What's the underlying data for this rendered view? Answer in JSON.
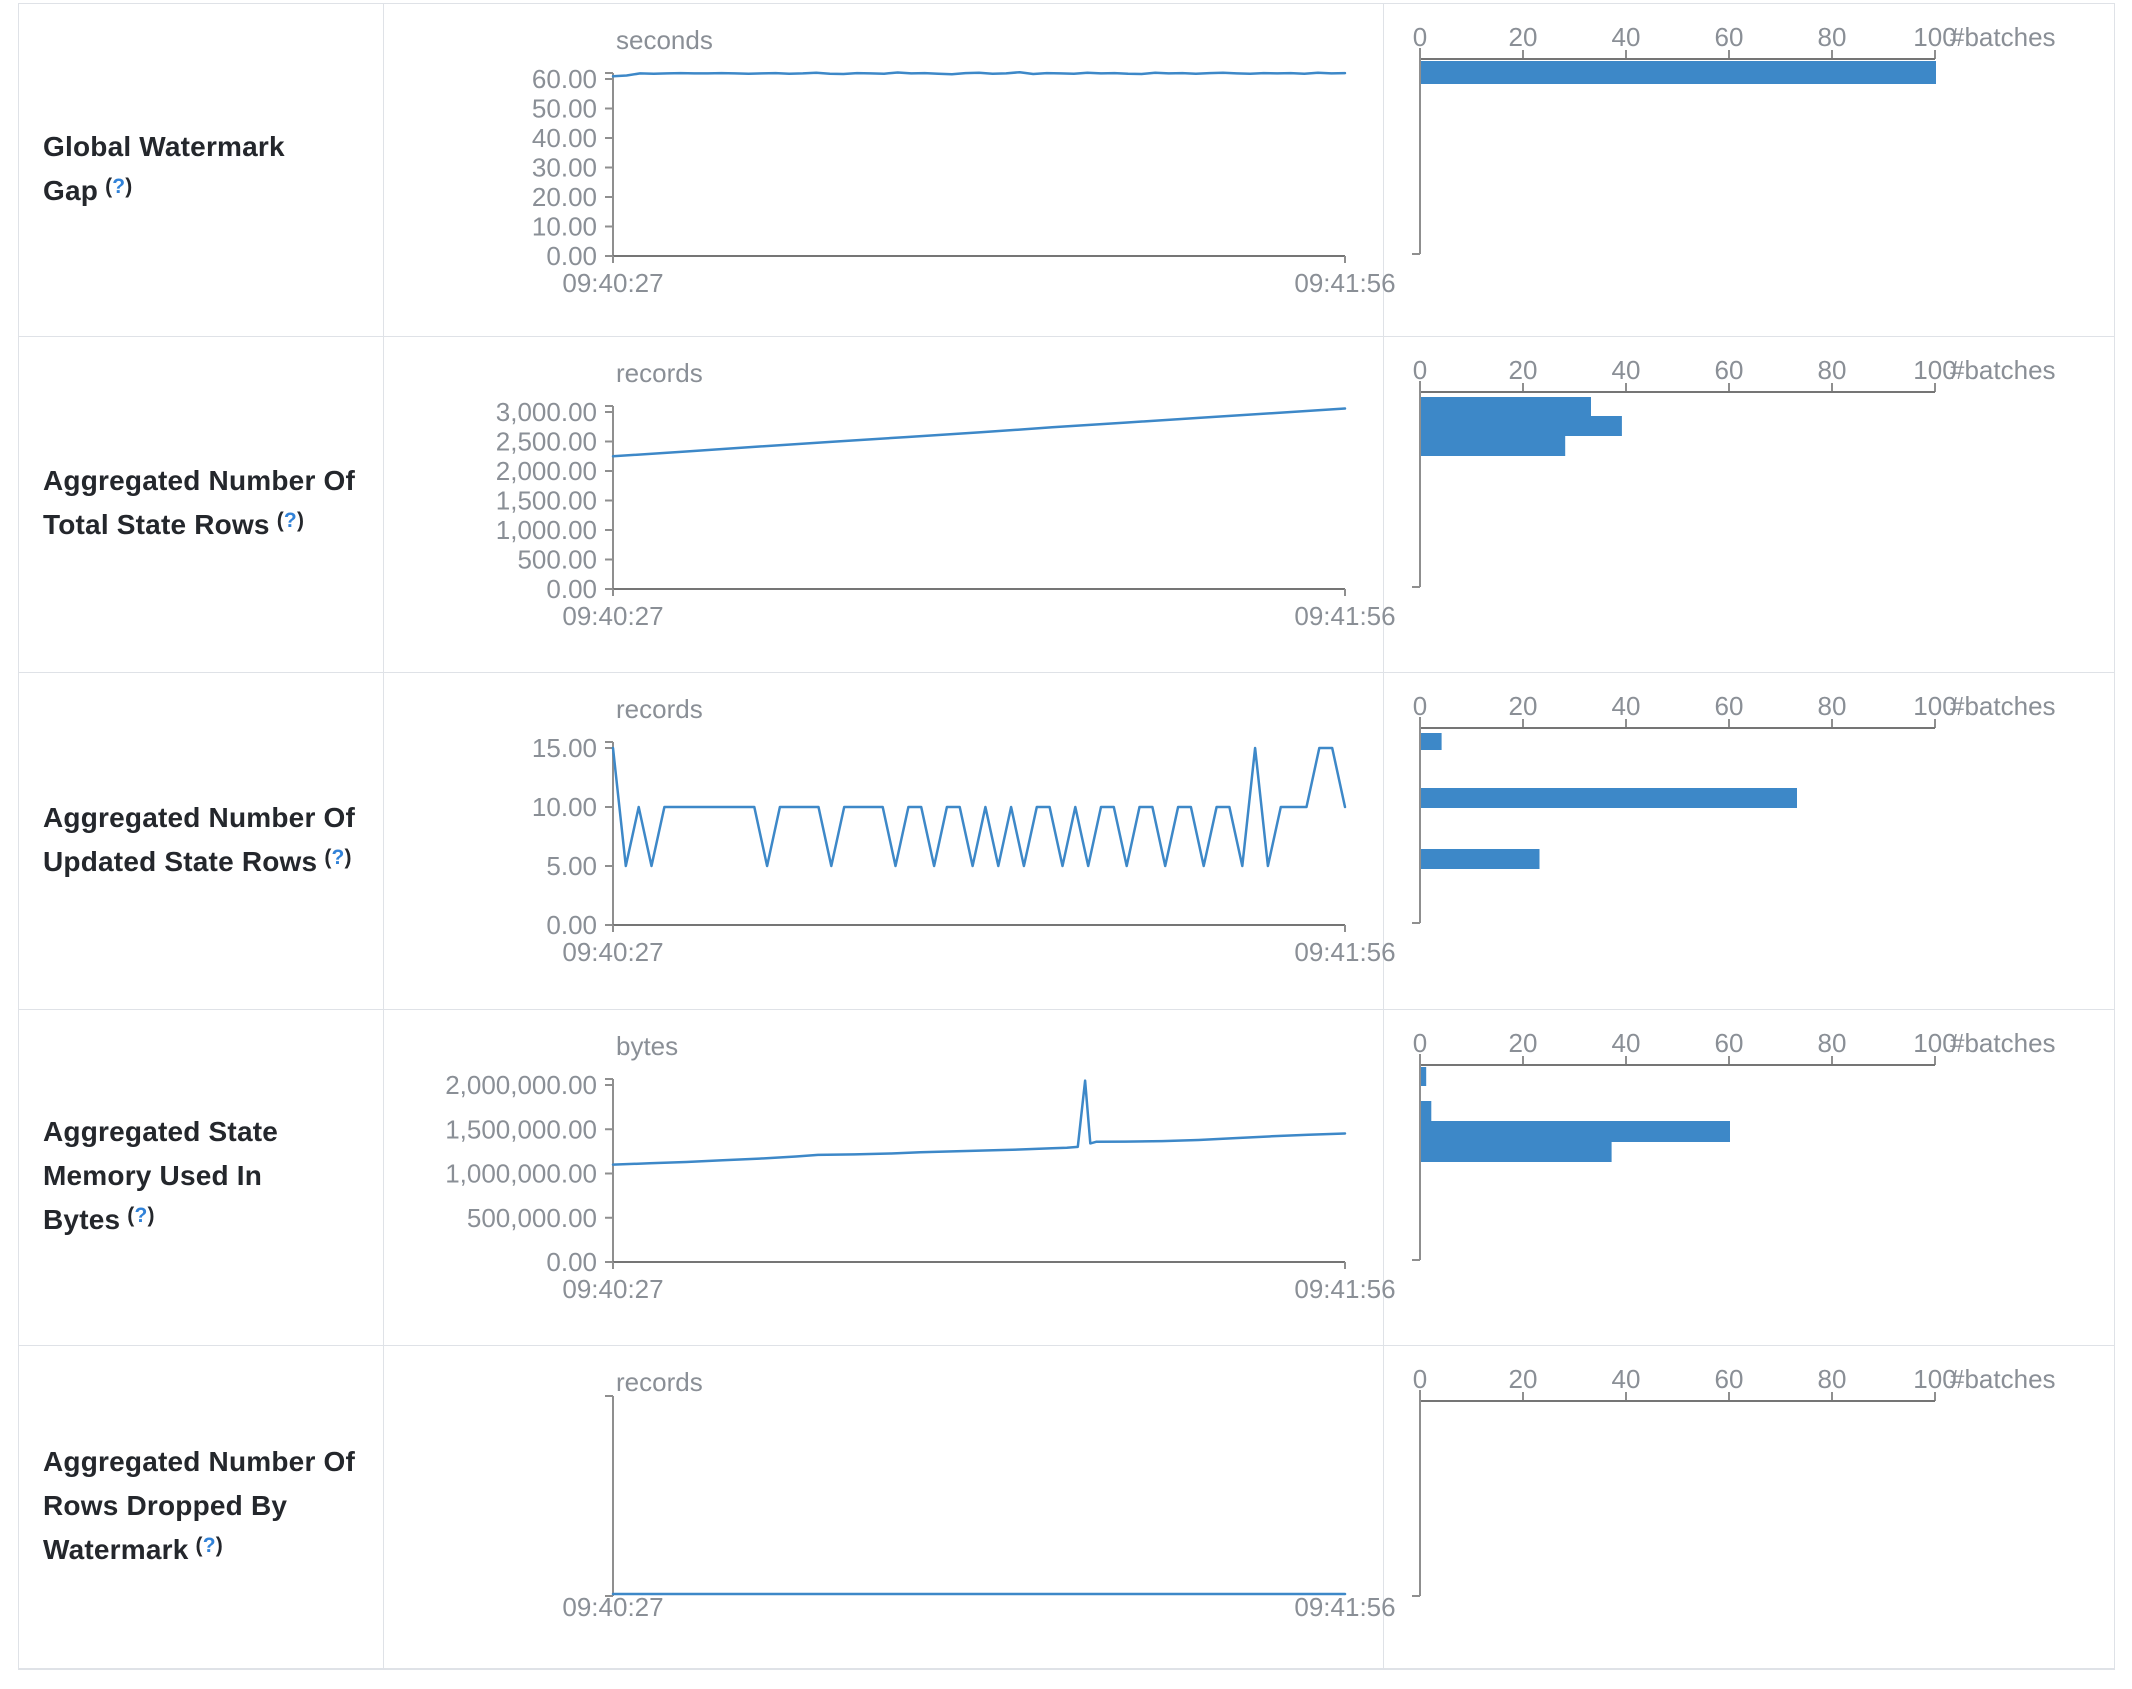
{
  "help": {
    "open": "(",
    "mark": "?",
    "close": ")"
  },
  "time_axis": {
    "start": "09:40:27",
    "end": "09:41:56"
  },
  "histogram_axis": {
    "ticks": [
      "0",
      "20",
      "40",
      "60",
      "80",
      "100"
    ],
    "label": "#batches",
    "max": 100
  },
  "rows": [
    {
      "label": "Global Watermark Gap",
      "unit": "seconds",
      "timeline": {
        "type": "line",
        "ymax": 60,
        "yticks": [
          "60.00",
          "50.00",
          "40.00",
          "30.00",
          "20.00",
          "10.00",
          "0.00"
        ],
        "values": [
          60.9,
          61.2,
          61.9,
          61.8,
          61.9,
          62.0,
          61.9,
          61.9,
          62.0,
          61.9,
          61.8,
          61.9,
          62.0,
          61.8,
          61.9,
          62.1,
          61.8,
          61.7,
          62.0,
          61.9,
          61.8,
          62.2,
          61.9,
          62.0,
          61.8,
          61.6,
          62.0,
          62.1,
          61.8,
          61.9,
          62.3,
          61.7,
          62.0,
          61.9,
          61.8,
          62.1,
          61.9,
          62.0,
          61.8,
          61.7,
          62.1,
          61.9,
          62.0,
          61.8,
          62.0,
          62.1,
          61.9,
          61.8,
          62.0,
          61.9,
          62.0,
          61.8,
          62.1,
          61.9,
          62.0
        ]
      },
      "histogram": {
        "type": "bar",
        "bars": [
          {
            "value": 100,
            "top": 57,
            "height": 23
          }
        ]
      }
    },
    {
      "label": "Aggregated Number Of Total State Rows",
      "unit": "records",
      "timeline": {
        "type": "line",
        "ymax": 3000,
        "yticks": [
          "3,000.00",
          "2,500.00",
          "2,000.00",
          "1,500.00",
          "1,000.00",
          "500.00",
          "0.00"
        ],
        "points": [
          [
            0,
            2250
          ],
          [
            0.1,
            2330
          ],
          [
            0.2,
            2415
          ],
          [
            0.3,
            2495
          ],
          [
            0.4,
            2575
          ],
          [
            0.5,
            2655
          ],
          [
            0.6,
            2740
          ],
          [
            0.7,
            2820
          ],
          [
            0.8,
            2900
          ],
          [
            0.9,
            2980
          ],
          [
            1,
            3060
          ]
        ]
      },
      "histogram": {
        "type": "bar",
        "bars": [
          {
            "value": 33,
            "top": 60,
            "height": 19
          },
          {
            "value": 39,
            "top": 79,
            "height": 20
          },
          {
            "value": 28,
            "top": 99,
            "height": 20
          }
        ]
      }
    },
    {
      "label": "Aggregated Number Of Updated State Rows",
      "unit": "records",
      "timeline": {
        "type": "line",
        "ymax": 15,
        "yticks": [
          "15.00",
          "10.00",
          "5.00",
          "0.00"
        ],
        "values": [
          15,
          5,
          10,
          5,
          10,
          10,
          10,
          10,
          10,
          10,
          10,
          10,
          5,
          10,
          10,
          10,
          10,
          5,
          10,
          10,
          10,
          10,
          5,
          10,
          10,
          5,
          10,
          10,
          5,
          10,
          5,
          10,
          5,
          10,
          10,
          5,
          10,
          5,
          10,
          10,
          5,
          10,
          10,
          5,
          10,
          10,
          5,
          10,
          10,
          5,
          15,
          5,
          10,
          10,
          10,
          15,
          15,
          10
        ]
      },
      "histogram": {
        "type": "bar",
        "bars": [
          {
            "value": 4,
            "top": 60,
            "height": 17
          },
          {
            "value": 73,
            "top": 115,
            "height": 20
          },
          {
            "value": 23,
            "top": 176,
            "height": 20
          }
        ]
      }
    },
    {
      "label": "Aggregated State Memory Used In Bytes",
      "unit": "bytes",
      "timeline": {
        "type": "line",
        "ymax": 2000000,
        "yticks": [
          "2,000,000.00",
          "1,500,000.00",
          "1,000,000.00",
          "500,000.00",
          "0.00"
        ],
        "points": [
          [
            0,
            1100000
          ],
          [
            0.05,
            1115000
          ],
          [
            0.1,
            1130000
          ],
          [
            0.15,
            1150000
          ],
          [
            0.2,
            1168000
          ],
          [
            0.25,
            1192000
          ],
          [
            0.28,
            1210000
          ],
          [
            0.33,
            1216000
          ],
          [
            0.38,
            1226000
          ],
          [
            0.42,
            1240000
          ],
          [
            0.47,
            1252000
          ],
          [
            0.52,
            1262000
          ],
          [
            0.56,
            1272000
          ],
          [
            0.6,
            1285000
          ],
          [
            0.62,
            1292000
          ],
          [
            0.635,
            1300000
          ],
          [
            0.645,
            2050000
          ],
          [
            0.652,
            1340000
          ],
          [
            0.66,
            1358000
          ],
          [
            0.7,
            1360000
          ],
          [
            0.75,
            1366000
          ],
          [
            0.8,
            1378000
          ],
          [
            0.85,
            1400000
          ],
          [
            0.9,
            1420000
          ],
          [
            0.95,
            1438000
          ],
          [
            1,
            1452000
          ]
        ]
      },
      "histogram": {
        "type": "bar",
        "bars": [
          {
            "value": 1,
            "top": 57,
            "height": 19
          },
          {
            "value": 2,
            "top": 91,
            "height": 20
          },
          {
            "value": 60,
            "top": 111,
            "height": 21
          },
          {
            "value": 37,
            "top": 132,
            "height": 20
          }
        ]
      }
    },
    {
      "label": "Aggregated Number Of Rows Dropped By Watermark",
      "unit": "records",
      "timeline": {
        "type": "line",
        "ymax": null,
        "yticks": null,
        "points": [
          [
            0,
            0
          ],
          [
            1,
            0
          ]
        ]
      },
      "histogram": {
        "type": "bar",
        "bars": []
      }
    }
  ],
  "colors": {
    "series_blue": "#3d88c8",
    "axis_line": "#757575",
    "axis_tick": "#8f8f8f",
    "axis_text": "#8a8f96",
    "border": "#dfe2e7",
    "label_text": "#24272c",
    "help_link": "#3182d8"
  }
}
